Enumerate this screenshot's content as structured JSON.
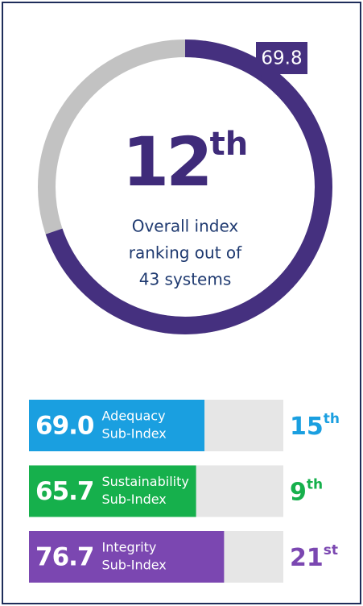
{
  "chart_data": [
    {
      "type": "donut",
      "value": 69.8,
      "ylim": [
        0,
        100
      ],
      "color": "#45307f",
      "track_color": "#c2c2c2",
      "rank": "12",
      "rank_suffix": "th",
      "caption": [
        "Overall index",
        "ranking out of",
        "43 systems"
      ]
    },
    {
      "type": "bar",
      "orientation": "horizontal",
      "categories": [
        [
          "Adequacy",
          "Sub-Index"
        ],
        [
          "Sustainability",
          "Sub-Index"
        ],
        [
          "Integrity",
          "Sub-Index"
        ]
      ],
      "values": [
        69.0,
        65.7,
        76.7
      ],
      "value_labels": [
        "69.0",
        "65.7",
        "76.7"
      ],
      "colors": [
        "#1a9fe0",
        "#16b04c",
        "#7b47b1"
      ],
      "ranks": [
        "15",
        "9",
        "21"
      ],
      "rank_suffixes": [
        "th",
        "th",
        "st"
      ],
      "xlim": [
        0,
        100
      ]
    }
  ]
}
